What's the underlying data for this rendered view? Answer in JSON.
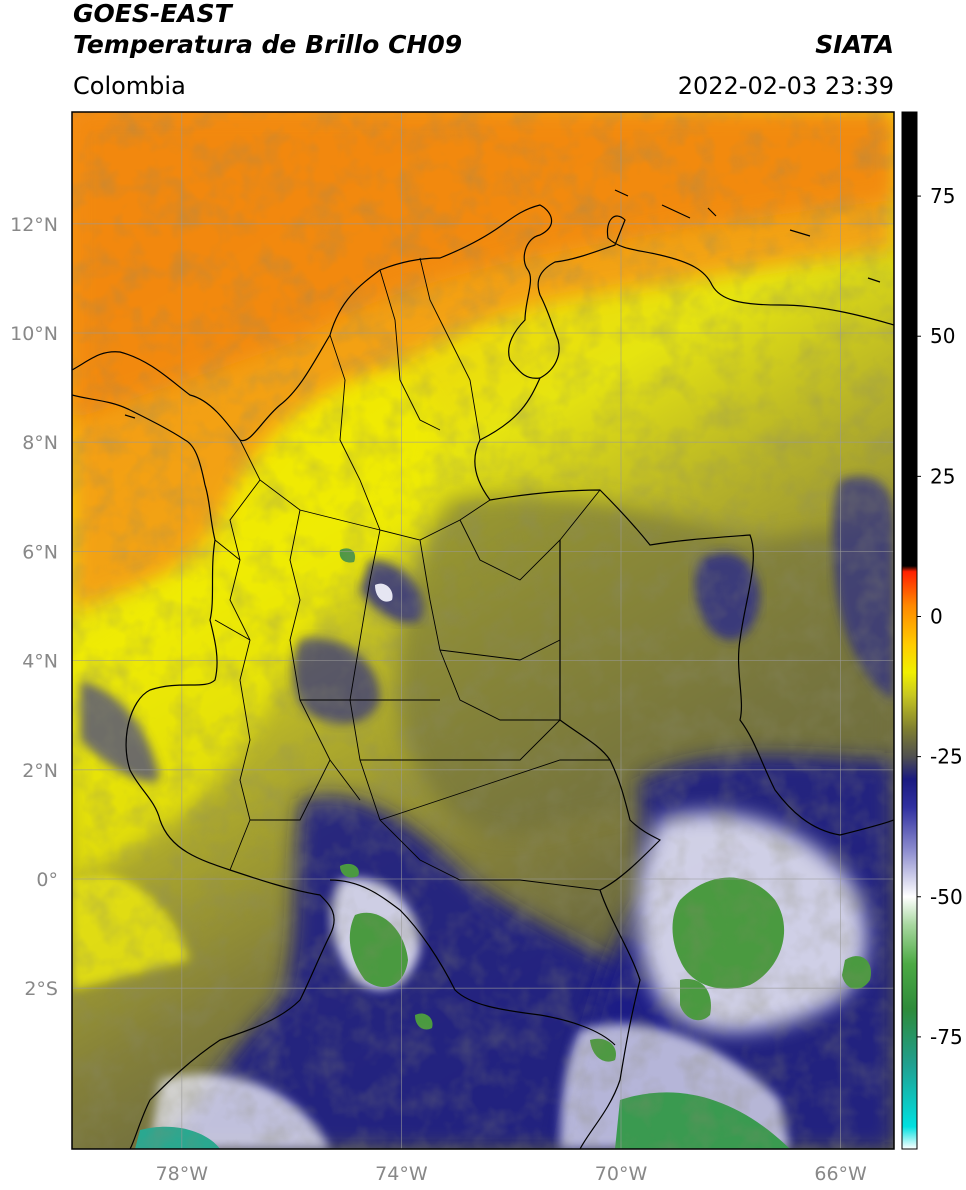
{
  "header": {
    "title_line1": "GOES-EAST",
    "title_line2": "Temperatura de Brillo CH09",
    "region": "Colombia",
    "source": "SIATA",
    "datetime": "2022-02-03 23:39"
  },
  "map": {
    "lon_range": [
      -80,
      -65
    ],
    "lat_range": [
      -5,
      14
    ],
    "lon_ticks": [
      {
        "value": -78,
        "label": "78°W"
      },
      {
        "value": -74,
        "label": "74°W"
      },
      {
        "value": -70,
        "label": "70°W"
      },
      {
        "value": -66,
        "label": "66°W"
      }
    ],
    "lat_ticks": [
      {
        "value": 12,
        "label": "12°N"
      },
      {
        "value": 10,
        "label": "10°N"
      },
      {
        "value": 8,
        "label": "8°N"
      },
      {
        "value": 6,
        "label": "6°N"
      },
      {
        "value": 4,
        "label": "4°N"
      },
      {
        "value": 2,
        "label": "2°N"
      },
      {
        "value": 0,
        "label": "0°"
      },
      {
        "value": -2,
        "label": "2°S"
      }
    ],
    "grid": true
  },
  "colorbar": {
    "range": [
      -95,
      90
    ],
    "ticks": [
      {
        "value": 75,
        "label": "75"
      },
      {
        "value": 50,
        "label": "50"
      },
      {
        "value": 25,
        "label": "25"
      },
      {
        "value": 0,
        "label": "0"
      },
      {
        "value": -25,
        "label": "-25"
      },
      {
        "value": -50,
        "label": "-50"
      },
      {
        "value": -75,
        "label": "-75"
      }
    ],
    "stops": [
      {
        "value": -95,
        "color": "#ffffff"
      },
      {
        "value": -91,
        "color": "#00e0e0"
      },
      {
        "value": -80,
        "color": "#20a090"
      },
      {
        "value": -70,
        "color": "#2e8b3a"
      },
      {
        "value": -62,
        "color": "#4caa44"
      },
      {
        "value": -55,
        "color": "#a8d8a0"
      },
      {
        "value": -50,
        "color": "#ffffff"
      },
      {
        "value": -42,
        "color": "#9090d0"
      },
      {
        "value": -34,
        "color": "#3030a0"
      },
      {
        "value": -29,
        "color": "#1a1a80"
      },
      {
        "value": -25,
        "color": "#505050"
      },
      {
        "value": -20,
        "color": "#808030"
      },
      {
        "value": -14,
        "color": "#c8c820"
      },
      {
        "value": -10,
        "color": "#f0f000"
      },
      {
        "value": -5,
        "color": "#ffcc00"
      },
      {
        "value": 2,
        "color": "#ff8800"
      },
      {
        "value": 8,
        "color": "#ff2000"
      },
      {
        "value": 9,
        "color": "#000000"
      },
      {
        "value": 90,
        "color": "#000000"
      }
    ]
  }
}
